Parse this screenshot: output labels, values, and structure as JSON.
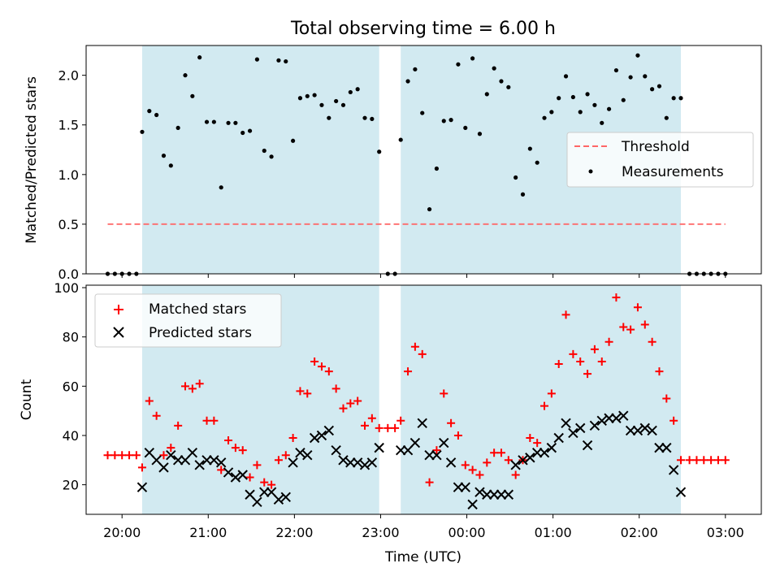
{
  "chart_data": [
    {
      "type": "scatter",
      "title": "Total observing time = 6.00 h",
      "ylabel": "Matched/Predicted stars",
      "xlabel": "",
      "ylim": [
        0,
        2.3
      ],
      "yticks": [
        0.0,
        0.5,
        1.0,
        1.5,
        2.0
      ],
      "yticklabels": [
        "0.0",
        "0.5",
        "1.0",
        "1.5",
        "2.0"
      ],
      "xlim": [
        "19:35",
        "03:25"
      ],
      "shaded_intervals": [
        [
          "20:14",
          "22:59"
        ],
        [
          "23:14",
          "02:29"
        ]
      ],
      "shade_color": "#add8e6",
      "legend": {
        "location": "center-right",
        "entries": [
          "Threshold",
          "Measurements"
        ]
      },
      "series": [
        {
          "name": "Threshold",
          "style": "dashed-line",
          "color": "#ff6666",
          "x": [
            "19:50",
            "03:00"
          ],
          "y": [
            0.5,
            0.5
          ]
        },
        {
          "name": "Measurements",
          "style": "point",
          "color": "#000000",
          "x": [
            "19:50",
            "19:55",
            "20:00",
            "20:05",
            "20:10",
            "20:14",
            "20:19",
            "20:24",
            "20:29",
            "20:34",
            "20:39",
            "20:44",
            "20:49",
            "20:54",
            "20:59",
            "21:04",
            "21:09",
            "21:14",
            "21:19",
            "21:24",
            "21:29",
            "21:34",
            "21:39",
            "21:44",
            "21:49",
            "21:54",
            "21:59",
            "22:04",
            "22:09",
            "22:14",
            "22:19",
            "22:24",
            "22:29",
            "22:34",
            "22:39",
            "22:44",
            "22:49",
            "22:54",
            "22:59",
            "23:05",
            "23:10",
            "23:14",
            "23:19",
            "23:24",
            "23:29",
            "23:34",
            "23:39",
            "23:44",
            "23:49",
            "23:54",
            "23:59",
            "00:04",
            "00:09",
            "00:14",
            "00:19",
            "00:24",
            "00:29",
            "00:34",
            "00:39",
            "00:44",
            "00:49",
            "00:54",
            "00:59",
            "01:04",
            "01:09",
            "01:14",
            "01:19",
            "01:24",
            "01:29",
            "01:34",
            "01:39",
            "01:44",
            "01:49",
            "01:54",
            "01:59",
            "02:04",
            "02:09",
            "02:14",
            "02:19",
            "02:24",
            "02:29",
            "02:35",
            "02:40",
            "02:45",
            "02:50",
            "02:55",
            "03:00"
          ],
          "y": [
            0,
            0,
            0,
            0,
            0,
            1.43,
            1.64,
            1.6,
            1.19,
            1.09,
            1.47,
            2.0,
            1.79,
            2.18,
            1.53,
            1.53,
            0.87,
            1.52,
            1.52,
            1.42,
            1.44,
            2.16,
            1.24,
            1.18,
            2.15,
            2.14,
            1.34,
            1.77,
            1.79,
            1.8,
            1.7,
            1.57,
            1.74,
            1.7,
            1.83,
            1.86,
            1.57,
            1.56,
            1.23,
            0,
            0,
            1.35,
            1.94,
            2.06,
            1.62,
            0.65,
            1.06,
            1.54,
            1.55,
            2.11,
            1.47,
            2.17,
            1.41,
            1.81,
            2.07,
            1.94,
            1.88,
            0.97,
            0.8,
            1.26,
            1.12,
            1.57,
            1.63,
            1.77,
            1.99,
            1.78,
            1.63,
            1.81,
            1.7,
            1.52,
            1.66,
            2.05,
            1.75,
            1.98,
            2.2,
            1.99,
            1.86,
            1.89,
            1.57,
            1.77,
            1.77,
            0,
            0,
            0,
            0,
            0,
            0
          ]
        }
      ]
    },
    {
      "type": "scatter",
      "title": "",
      "ylabel": "Count",
      "xlabel": "Time (UTC)",
      "ylim": [
        8,
        101
      ],
      "yticks": [
        20,
        40,
        60,
        80,
        100
      ],
      "yticklabels": [
        "20",
        "40",
        "60",
        "80",
        "100"
      ],
      "xlim": [
        "19:35",
        "03:25"
      ],
      "xticks": [
        "20:00",
        "21:00",
        "22:00",
        "23:00",
        "00:00",
        "01:00",
        "02:00",
        "03:00"
      ],
      "xticklabels": [
        "20:00",
        "21:00",
        "22:00",
        "23:00",
        "00:00",
        "01:00",
        "02:00",
        "03:00"
      ],
      "shaded_intervals": [
        [
          "20:14",
          "22:59"
        ],
        [
          "23:14",
          "02:29"
        ]
      ],
      "shade_color": "#add8e6",
      "legend": {
        "location": "upper-left",
        "entries": [
          "Matched stars",
          "Predicted stars"
        ]
      },
      "series": [
        {
          "name": "Matched stars",
          "marker": "+",
          "color": "#ff0000",
          "x": [
            "19:50",
            "19:55",
            "20:00",
            "20:05",
            "20:10",
            "20:14",
            "20:19",
            "20:24",
            "20:29",
            "20:34",
            "20:39",
            "20:44",
            "20:49",
            "20:54",
            "20:59",
            "21:04",
            "21:09",
            "21:14",
            "21:19",
            "21:24",
            "21:29",
            "21:34",
            "21:39",
            "21:44",
            "21:49",
            "21:54",
            "21:59",
            "22:04",
            "22:09",
            "22:14",
            "22:19",
            "22:24",
            "22:29",
            "22:34",
            "22:39",
            "22:44",
            "22:49",
            "22:54",
            "22:59",
            "23:05",
            "23:10",
            "23:14",
            "23:19",
            "23:24",
            "23:29",
            "23:34",
            "23:39",
            "23:44",
            "23:49",
            "23:54",
            "23:59",
            "00:04",
            "00:09",
            "00:14",
            "00:19",
            "00:24",
            "00:29",
            "00:34",
            "00:39",
            "00:44",
            "00:49",
            "00:54",
            "00:59",
            "01:04",
            "01:09",
            "01:14",
            "01:19",
            "01:24",
            "01:29",
            "01:34",
            "01:39",
            "01:44",
            "01:49",
            "01:54",
            "01:59",
            "02:04",
            "02:09",
            "02:14",
            "02:19",
            "02:24",
            "02:29",
            "02:35",
            "02:40",
            "02:45",
            "02:50",
            "02:55",
            "03:00"
          ],
          "y": [
            32,
            32,
            32,
            32,
            32,
            27,
            54,
            48,
            32,
            35,
            44,
            60,
            59,
            61,
            46,
            46,
            26,
            38,
            35,
            34,
            23,
            28,
            21,
            20,
            30,
            32,
            39,
            58,
            57,
            70,
            68,
            66,
            59,
            51,
            53,
            54,
            44,
            47,
            43,
            43,
            43,
            46,
            66,
            76,
            73,
            21,
            34,
            57,
            45,
            40,
            28,
            26,
            24,
            29,
            33,
            33,
            30,
            24,
            30,
            39,
            37,
            52,
            57,
            69,
            89,
            73,
            70,
            65,
            75,
            70,
            78,
            96,
            84,
            83,
            92,
            85,
            78,
            66,
            55,
            46,
            30,
            30,
            30,
            30,
            30,
            30,
            30
          ]
        },
        {
          "name": "Predicted stars",
          "marker": "x",
          "color": "#000000",
          "x": [
            "20:14",
            "20:19",
            "20:24",
            "20:29",
            "20:34",
            "20:39",
            "20:44",
            "20:49",
            "20:54",
            "20:59",
            "21:04",
            "21:09",
            "21:14",
            "21:19",
            "21:24",
            "21:29",
            "21:34",
            "21:39",
            "21:44",
            "21:49",
            "21:54",
            "21:59",
            "22:04",
            "22:09",
            "22:14",
            "22:19",
            "22:24",
            "22:29",
            "22:34",
            "22:39",
            "22:44",
            "22:49",
            "22:54",
            "22:59",
            "23:14",
            "23:19",
            "23:24",
            "23:29",
            "23:34",
            "23:39",
            "23:44",
            "23:49",
            "23:54",
            "23:59",
            "00:04",
            "00:09",
            "00:14",
            "00:19",
            "00:24",
            "00:29",
            "00:34",
            "00:39",
            "00:44",
            "00:49",
            "00:54",
            "00:59",
            "01:04",
            "01:09",
            "01:14",
            "01:19",
            "01:24",
            "01:29",
            "01:34",
            "01:39",
            "01:44",
            "01:49",
            "01:54",
            "01:59",
            "02:04",
            "02:09",
            "02:14",
            "02:19",
            "02:24",
            "02:29"
          ],
          "y": [
            19,
            33,
            30,
            27,
            32,
            30,
            30,
            33,
            28,
            30,
            30,
            29,
            25,
            23,
            24,
            16,
            13,
            17,
            17,
            14,
            15,
            29,
            33,
            32,
            39,
            40,
            42,
            34,
            30,
            29,
            29,
            28,
            29,
            35,
            34,
            34,
            37,
            45,
            32,
            32,
            37,
            29,
            19,
            19,
            12,
            17,
            16,
            16,
            16,
            16,
            28,
            30,
            31,
            33,
            33,
            35,
            39,
            45,
            41,
            43,
            36,
            44,
            46,
            47,
            47,
            48,
            42,
            42,
            43,
            42,
            35,
            35,
            26,
            17
          ]
        }
      ]
    }
  ]
}
